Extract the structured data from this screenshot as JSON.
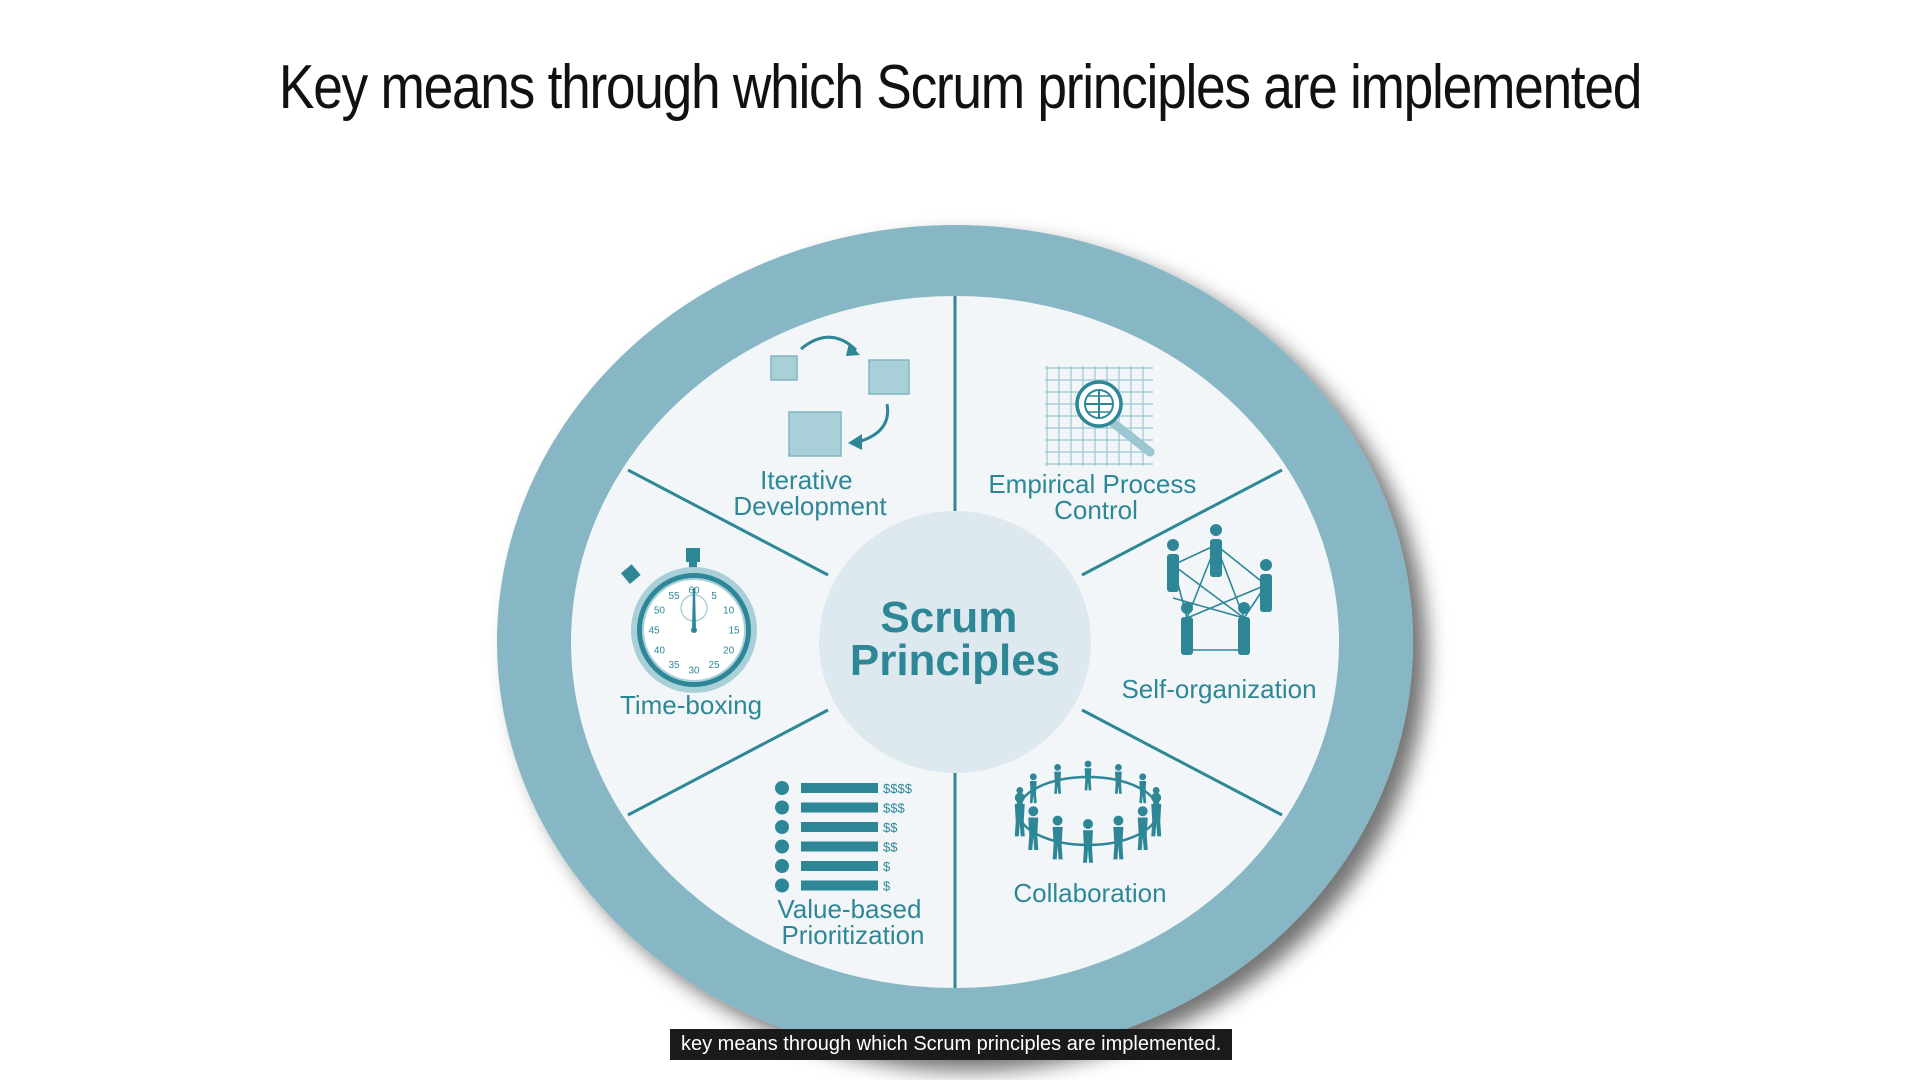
{
  "title": "Key means through which Scrum principles are implemented",
  "diagram": {
    "center": [
      "Scrum",
      "Principles"
    ],
    "segments": [
      {
        "lines": [
          "Iterative",
          "Development"
        ],
        "icon": "iterative-cycle-icon"
      },
      {
        "lines": [
          "Empirical Process",
          "Control"
        ],
        "icon": "magnifier-grid-icon"
      },
      {
        "lines": [
          "Self-organization"
        ],
        "icon": "network-people-icon"
      },
      {
        "lines": [
          "Collaboration"
        ],
        "icon": "people-circle-icon"
      },
      {
        "lines": [
          "Value-based",
          "Prioritization"
        ],
        "icon": "priority-list-icon"
      },
      {
        "lines": [
          "Time-boxing"
        ],
        "icon": "stopwatch-icon"
      }
    ],
    "stopwatch_numbers": [
      "60",
      "5",
      "10",
      "15",
      "20",
      "25",
      "30",
      "35",
      "40",
      "45",
      "50",
      "55"
    ],
    "priority_values": [
      "$$$$",
      "$$$",
      "$$",
      "$$",
      "$",
      "$"
    ],
    "colors": {
      "ring": "#87b7c5",
      "inner": "#f3f6f8",
      "hub": "#dde9ef",
      "ink": "#2e8797",
      "light": "#a9cfd9"
    }
  },
  "caption": "key means through which Scrum principles are implemented."
}
